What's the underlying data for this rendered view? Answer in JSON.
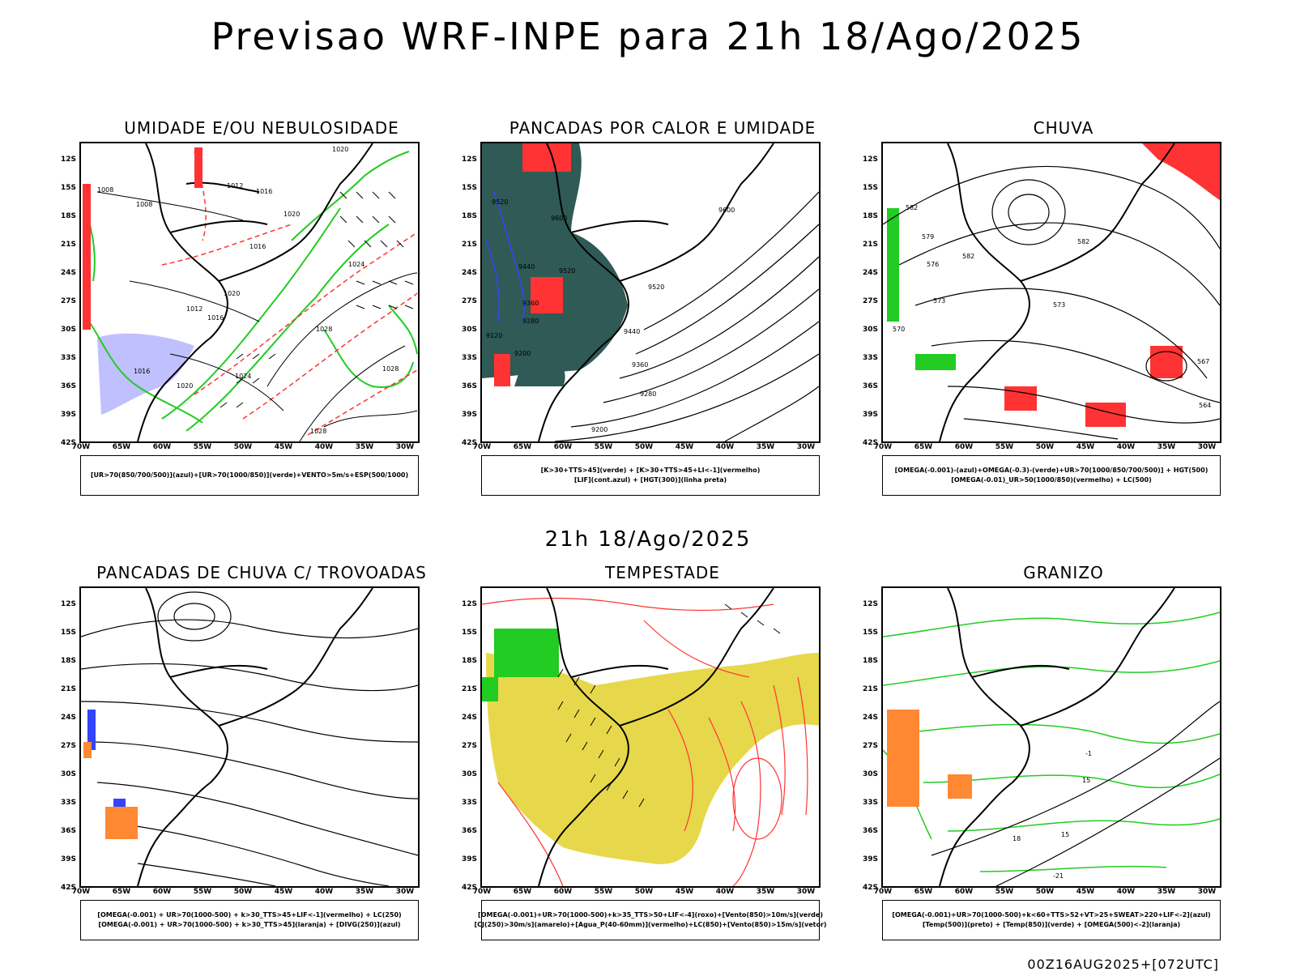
{
  "title": "Previsao WRF-INPE  para 21h 18/Ago/2025",
  "subtitle": "21h 18/Ago/2025",
  "footer": "00Z16AUG2025+[072UTC]",
  "axes": {
    "lat_labels": [
      "12S",
      "15S",
      "18S",
      "21S",
      "24S",
      "27S",
      "30S",
      "33S",
      "36S",
      "39S",
      "42S"
    ],
    "lon_labels": [
      "70W",
      "65W",
      "60W",
      "55W",
      "50W",
      "45W",
      "40W",
      "35W",
      "30W"
    ]
  },
  "colors": {
    "green": "#22cc22",
    "red": "#ff3333",
    "blue": "#3344ff",
    "lavender": "#b0b0ff",
    "dark_teal": "#2f5a55",
    "yellow": "#e6d84a",
    "orange": "#ff8833",
    "black": "#000000"
  },
  "panels": [
    {
      "title": "UMIDADE E/OU NEBULOSIDADE",
      "legend": [
        "[UR>70(850/700/500)](azul)+[UR>70(1000/850)](verde)+VENTO>5m/s+ESP(500/1000)"
      ]
    },
    {
      "title": "PANCADAS POR CALOR E UMIDADE",
      "legend": [
        "[K>30+TTS>45](verde) + [K>30+TTS>45+LI<-1](vermelho)",
        "[LIF](cont.azul) + [HGT(300)](linha preta)"
      ]
    },
    {
      "title": "CHUVA",
      "legend": [
        "[OMEGA(-0.001)-(azul)+OMEGA(-0.3)-(verde)+UR>70(1000/850/700/500)] + HGT(500)",
        "[OMEGA(-0.01)_UR>50(1000/850)(vermelho) + LC(500)"
      ]
    },
    {
      "title": "PANCADAS DE CHUVA C/ TROVOADAS",
      "legend": [
        "[OMEGA(-0.001) + UR>70(1000-500) + k>30_TTS>45+LIF<-1](vermelho) + LC(250)",
        "[OMEGA(-0.001) + UR>70(1000-500) + k>30_TTS>45](laranja) + [DIVG(250)](azul)"
      ]
    },
    {
      "title": "TEMPESTADE",
      "legend": [
        "[OMEGA(-0.001)+UR>70(1000-500)+k>35_TTS>50+LIF<-4](roxo)+[Vento(850)>10m/s](verde)",
        "[CJ(250)>30m/s](amarelo)+[Agua_P(40-60mm)](vermelho)+LC(850)+[Vento(850)>15m/s](vetor)"
      ]
    },
    {
      "title": "GRANIZO",
      "legend": [
        "[OMEGA(-0.001)+UR>70(1000-500)+k<60+TTS>52+VT>25+SWEAT>220+LIF<-2](azul)",
        "[Temp(500)](preto) + [Temp(850)](verde) + [OMEGA(500)<-2](laranja)"
      ]
    }
  ],
  "contour_labels": {
    "p0": [
      "1008",
      "1008",
      "1012",
      "1016",
      "1020",
      "1020",
      "1016",
      "1024",
      "1020",
      "1012",
      "1016",
      "1028",
      "1016",
      "1020",
      "1024",
      "1028",
      "1028"
    ],
    "p1": [
      "9520",
      "9600",
      "9440",
      "9600",
      "9520",
      "9360",
      "9520",
      "9280",
      "9120",
      "9440",
      "9200",
      "9360",
      "9280",
      "9200"
    ],
    "p2": [
      "582",
      "579",
      "582",
      "576",
      "573",
      "570",
      "573",
      "567",
      "564",
      "582"
    ],
    "p5": [
      "-1",
      "15",
      "15",
      "18",
      "-21"
    ]
  }
}
